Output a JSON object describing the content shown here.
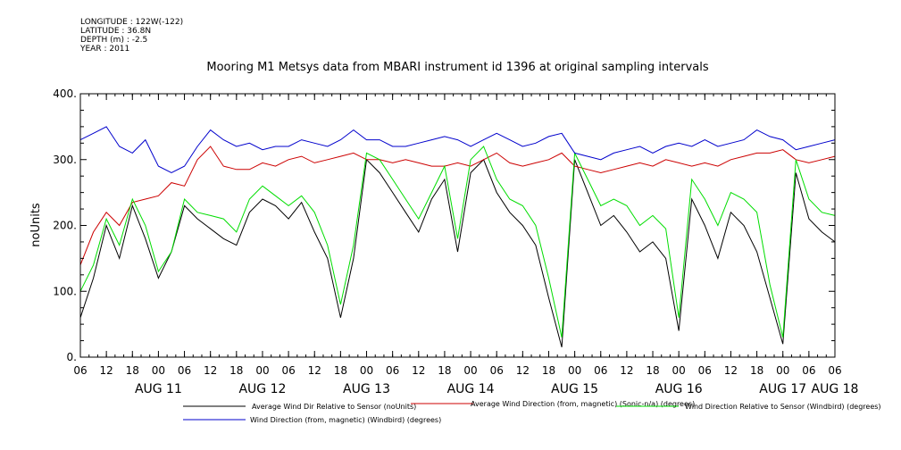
{
  "header": {
    "meta_lines": [
      "LONGITUDE : 122W(-122)",
      "LATITUDE : 36.8N",
      "DEPTH (m) : -2.5",
      "YEAR : 2011"
    ],
    "title": "Mooring M1 Metsys data from MBARI instrument id 1396 at original sampling intervals"
  },
  "chart_data": {
    "type": "line",
    "title": "Mooring M1 Metsys data from MBARI instrument id 1396 at original sampling intervals",
    "xlabel": "",
    "ylabel": "noUnits",
    "ylim": [
      0,
      400
    ],
    "yticks": [
      0,
      100,
      200,
      300,
      400
    ],
    "ytick_labels": [
      "0.",
      "100.",
      "200.",
      "300.",
      "400."
    ],
    "x_unit": "hours since 2011-08-11 06:00",
    "xlim": [
      0,
      174
    ],
    "xtick_hours": [
      0,
      6,
      12,
      18,
      24,
      30,
      36,
      42,
      48,
      54,
      60,
      66,
      72,
      78,
      84,
      90,
      96,
      102,
      108,
      114,
      120,
      126,
      132,
      138,
      144,
      150,
      156,
      162,
      168,
      174
    ],
    "xtick_labels": [
      "06",
      "12",
      "18",
      "00",
      "06",
      "12",
      "18",
      "00",
      "06",
      "12",
      "18",
      "00",
      "06",
      "12",
      "18",
      "00",
      "06",
      "12",
      "18",
      "00",
      "06",
      "12",
      "18",
      "00",
      "06",
      "12",
      "18",
      "00",
      "06",
      "06"
    ],
    "date_labels": [
      {
        "hour": 18,
        "label": "AUG 11"
      },
      {
        "hour": 42,
        "label": "AUG 12"
      },
      {
        "hour": 66,
        "label": "AUG 13"
      },
      {
        "hour": 90,
        "label": "AUG 14"
      },
      {
        "hour": 114,
        "label": "AUG 15"
      },
      {
        "hour": 138,
        "label": "AUG 16"
      },
      {
        "hour": 162,
        "label": "AUG 17"
      },
      {
        "hour": 174,
        "label": "AUG 18"
      }
    ],
    "grid": false,
    "legend_position": "bottom",
    "series": [
      {
        "name": "Average Wind Dir Relative to Sensor (noUnits)",
        "color": "#000000",
        "x": [
          0,
          3,
          6,
          9,
          12,
          15,
          18,
          21,
          24,
          27,
          30,
          33,
          36,
          39,
          42,
          45,
          48,
          51,
          54,
          57,
          60,
          63,
          66,
          69,
          72,
          75,
          78,
          81,
          84,
          87,
          90,
          93,
          96,
          99,
          102,
          105,
          108,
          111,
          114,
          117,
          120,
          123,
          126,
          129,
          132,
          135,
          138,
          141,
          144,
          147,
          150,
          153,
          156,
          159,
          162,
          165,
          168,
          171,
          174
        ],
        "y": [
          60,
          120,
          200,
          150,
          230,
          180,
          120,
          160,
          230,
          210,
          195,
          180,
          170,
          220,
          240,
          230,
          210,
          235,
          190,
          150,
          60,
          150,
          300,
          280,
          250,
          220,
          190,
          240,
          270,
          160,
          280,
          300,
          250,
          220,
          200,
          170,
          90,
          15,
          300,
          250,
          200,
          215,
          190,
          160,
          175,
          150,
          40,
          240,
          200,
          150,
          220,
          200,
          160,
          90,
          20,
          280,
          210,
          190,
          175
        ]
      },
      {
        "name": "Average Wind Direction (from, magnetic) (Sonic-n/a) (degrees)",
        "color": "#cc0000",
        "x": [
          0,
          3,
          6,
          9,
          12,
          15,
          18,
          21,
          24,
          27,
          30,
          33,
          36,
          39,
          42,
          45,
          48,
          51,
          54,
          57,
          60,
          63,
          66,
          69,
          72,
          75,
          78,
          81,
          84,
          87,
          90,
          93,
          96,
          99,
          102,
          105,
          108,
          111,
          114,
          117,
          120,
          123,
          126,
          129,
          132,
          135,
          138,
          141,
          144,
          147,
          150,
          153,
          156,
          159,
          162,
          165,
          168,
          171,
          174
        ],
        "y": [
          140,
          190,
          220,
          200,
          235,
          240,
          245,
          265,
          260,
          300,
          320,
          290,
          285,
          285,
          295,
          290,
          300,
          305,
          295,
          300,
          305,
          310,
          300,
          300,
          295,
          300,
          295,
          290,
          290,
          295,
          290,
          300,
          310,
          295,
          290,
          295,
          300,
          310,
          290,
          285,
          280,
          285,
          290,
          295,
          290,
          300,
          295,
          290,
          295,
          290,
          300,
          305,
          310,
          310,
          315,
          300,
          295,
          300,
          305
        ]
      },
      {
        "name": "Wind Direction Relative to Sensor (Windbird) (degrees)",
        "color": "#00dd00",
        "x": [
          0,
          3,
          6,
          9,
          12,
          15,
          18,
          21,
          24,
          27,
          30,
          33,
          36,
          39,
          42,
          45,
          48,
          51,
          54,
          57,
          60,
          63,
          66,
          69,
          72,
          75,
          78,
          81,
          84,
          87,
          90,
          93,
          96,
          99,
          102,
          105,
          108,
          111,
          114,
          117,
          120,
          123,
          126,
          129,
          132,
          135,
          138,
          141,
          144,
          147,
          150,
          153,
          156,
          159,
          162,
          165,
          168,
          171,
          174
        ],
        "y": [
          100,
          140,
          210,
          170,
          240,
          200,
          130,
          160,
          240,
          220,
          215,
          210,
          190,
          240,
          260,
          245,
          230,
          245,
          220,
          170,
          80,
          170,
          310,
          300,
          270,
          240,
          210,
          250,
          290,
          180,
          300,
          320,
          270,
          240,
          230,
          200,
          120,
          30,
          310,
          270,
          230,
          240,
          230,
          200,
          215,
          195,
          60,
          270,
          240,
          200,
          250,
          240,
          220,
          110,
          30,
          300,
          240,
          220,
          215
        ]
      },
      {
        "name": "Wind Direction (from, magnetic) (Windbird) (degrees)",
        "color": "#0000cc",
        "x": [
          0,
          3,
          6,
          9,
          12,
          15,
          18,
          21,
          24,
          27,
          30,
          33,
          36,
          39,
          42,
          45,
          48,
          51,
          54,
          57,
          60,
          63,
          66,
          69,
          72,
          75,
          78,
          81,
          84,
          87,
          90,
          93,
          96,
          99,
          102,
          105,
          108,
          111,
          114,
          117,
          120,
          123,
          126,
          129,
          132,
          135,
          138,
          141,
          144,
          147,
          150,
          153,
          156,
          159,
          162,
          165,
          168,
          171,
          174
        ],
        "y": [
          330,
          340,
          350,
          320,
          310,
          330,
          290,
          280,
          290,
          320,
          345,
          330,
          320,
          325,
          315,
          320,
          320,
          330,
          325,
          320,
          330,
          345,
          330,
          330,
          320,
          320,
          325,
          330,
          335,
          330,
          320,
          330,
          340,
          330,
          320,
          325,
          335,
          340,
          310,
          305,
          300,
          310,
          315,
          320,
          310,
          320,
          325,
          320,
          330,
          320,
          325,
          330,
          345,
          335,
          330,
          315,
          320,
          325,
          330
        ]
      }
    ]
  }
}
